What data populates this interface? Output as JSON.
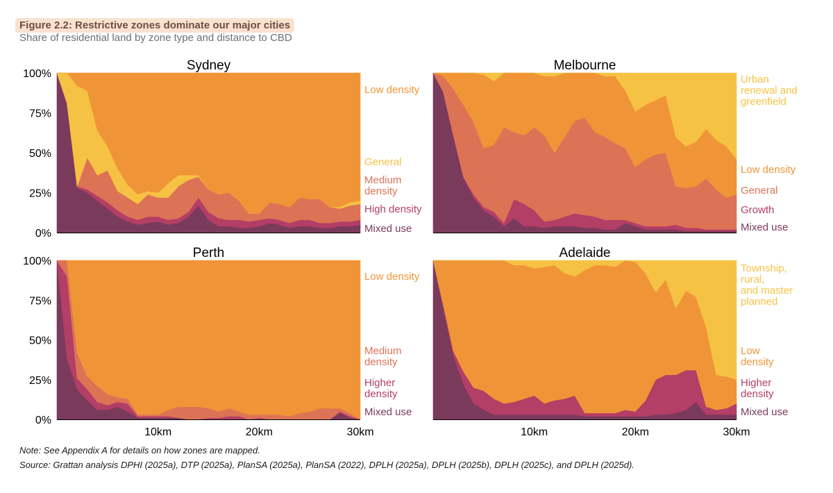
{
  "figure": {
    "title": "Figure 2.2: Restrictive zones dominate our major cities",
    "subtitle": "Share of residential land by zone type and distance to CBD",
    "note": "Note: See Appendix A for details on how zones are mapped.",
    "source": "Source: Grattan analysis DPHI (2025a), DTP (2025a), PlanSA (2025a), PlanSA (2022), DPLH (2025a), DPLH (2025b), DPLH (2025c), and DPLH (2025d)."
  },
  "chart_data": [
    {
      "type": "area",
      "stacked": true,
      "title": "Sydney",
      "x_unit": "km",
      "x": [
        0,
        1,
        2,
        3,
        4,
        5,
        6,
        7,
        8,
        9,
        10,
        11,
        12,
        13,
        14,
        15,
        16,
        17,
        18,
        19,
        20,
        21,
        22,
        23,
        24,
        25,
        26,
        27,
        28,
        29,
        30
      ],
      "xlim": [
        0,
        30
      ],
      "ylim": [
        0,
        100
      ],
      "y_ticks": [
        "0%",
        "25%",
        "50%",
        "75%",
        "100%"
      ],
      "x_ticks": [
        {
          "value": 10,
          "label": "10km"
        },
        {
          "value": 20,
          "label": "20km"
        },
        {
          "value": 30,
          "label": "30km"
        }
      ],
      "series": [
        {
          "name": "Mixed use",
          "color": "#7a3a5c",
          "values": [
            100,
            80,
            28,
            25,
            20,
            15,
            10,
            7,
            5,
            6,
            7,
            5,
            6,
            10,
            17,
            8,
            4,
            4,
            3,
            3,
            4,
            6,
            5,
            3,
            4,
            4,
            3,
            3,
            4,
            4,
            5
          ]
        },
        {
          "name": "High density",
          "color": "#b33e66",
          "values": [
            0,
            1,
            1,
            2,
            3,
            4,
            4,
            3,
            3,
            4,
            3,
            3,
            3,
            3,
            5,
            5,
            5,
            4,
            5,
            4,
            4,
            3,
            3,
            3,
            4,
            4,
            3,
            3,
            3,
            3,
            3
          ]
        },
        {
          "name": "Medium density",
          "color": "#dd7355",
          "values": [
            0,
            0,
            0,
            20,
            13,
            20,
            12,
            12,
            10,
            14,
            12,
            14,
            20,
            20,
            13,
            14,
            15,
            17,
            12,
            5,
            4,
            10,
            10,
            10,
            14,
            13,
            15,
            10,
            8,
            10,
            10
          ]
        },
        {
          "name": "General",
          "color": "#f6c244",
          "values": [
            0,
            19,
            63,
            42,
            28,
            15,
            14,
            8,
            6,
            2,
            3,
            9,
            7,
            3,
            1,
            0,
            0,
            0,
            0,
            0,
            0,
            0,
            0,
            0,
            0,
            0,
            0,
            0,
            1,
            2,
            2
          ]
        },
        {
          "name": "Low density",
          "color": "#f09537",
          "values": [
            0,
            0,
            8,
            11,
            36,
            46,
            60,
            70,
            76,
            74,
            75,
            69,
            64,
            64,
            64,
            73,
            76,
            75,
            80,
            88,
            88,
            81,
            82,
            84,
            78,
            79,
            79,
            84,
            84,
            81,
            80
          ]
        }
      ]
    },
    {
      "type": "area",
      "stacked": true,
      "title": "Melbourne",
      "x_unit": "km",
      "x": [
        0,
        1,
        2,
        3,
        4,
        5,
        6,
        7,
        8,
        9,
        10,
        11,
        12,
        13,
        14,
        15,
        16,
        17,
        18,
        19,
        20,
        21,
        22,
        23,
        24,
        25,
        26,
        27,
        28,
        29,
        30
      ],
      "xlim": [
        0,
        30
      ],
      "ylim": [
        0,
        100
      ],
      "y_ticks": [
        "0%",
        "25%",
        "50%",
        "75%",
        "100%"
      ],
      "x_ticks": [
        {
          "value": 10,
          "label": "10km"
        },
        {
          "value": 20,
          "label": "20km"
        },
        {
          "value": 30,
          "label": "30km"
        }
      ],
      "series": [
        {
          "name": "Mixed use",
          "color": "#7a3a5c",
          "values": [
            100,
            88,
            60,
            34,
            22,
            14,
            10,
            4,
            9,
            4,
            4,
            3,
            4,
            4,
            4,
            3,
            3,
            2,
            2,
            6,
            4,
            2,
            2,
            2,
            2,
            1,
            1,
            1,
            1,
            1,
            1
          ]
        },
        {
          "name": "Growth",
          "color": "#b33e66",
          "values": [
            0,
            0,
            1,
            1,
            2,
            2,
            3,
            2,
            12,
            14,
            10,
            4,
            4,
            6,
            8,
            8,
            7,
            6,
            6,
            2,
            2,
            2,
            2,
            2,
            3,
            2,
            2,
            1,
            1,
            1,
            1
          ]
        },
        {
          "name": "General",
          "color": "#dd7355",
          "values": [
            0,
            10,
            29,
            45,
            45,
            37,
            42,
            60,
            42,
            43,
            52,
            54,
            42,
            50,
            58,
            61,
            53,
            52,
            48,
            45,
            35,
            42,
            45,
            46,
            24,
            25,
            26,
            32,
            25,
            20,
            22
          ]
        },
        {
          "name": "Low density",
          "color": "#f09537",
          "values": [
            0,
            2,
            10,
            20,
            31,
            46,
            40,
            34,
            37,
            39,
            34,
            37,
            48,
            40,
            30,
            28,
            37,
            38,
            42,
            36,
            35,
            34,
            34,
            36,
            31,
            26,
            28,
            31,
            31,
            32,
            22
          ]
        },
        {
          "name": "Urban renewal and greenfield",
          "color": "#f6c244",
          "values": [
            0,
            0,
            0,
            0,
            0,
            1,
            5,
            0,
            0,
            0,
            0,
            2,
            2,
            0,
            0,
            0,
            0,
            2,
            2,
            11,
            24,
            20,
            17,
            14,
            40,
            46,
            43,
            35,
            42,
            46,
            54
          ]
        }
      ]
    },
    {
      "type": "area",
      "stacked": true,
      "title": "Perth",
      "x_unit": "km",
      "x": [
        0,
        1,
        2,
        3,
        4,
        5,
        6,
        7,
        8,
        9,
        10,
        11,
        12,
        13,
        14,
        15,
        16,
        17,
        18,
        19,
        20,
        21,
        22,
        23,
        24,
        25,
        26,
        27,
        28,
        29,
        30
      ],
      "xlim": [
        0,
        30
      ],
      "ylim": [
        0,
        100
      ],
      "y_ticks": [
        "0%",
        "25%",
        "50%",
        "75%",
        "100%"
      ],
      "x_ticks": [
        {
          "value": 10,
          "label": "10km"
        },
        {
          "value": 20,
          "label": "20km"
        },
        {
          "value": 30,
          "label": "30km"
        }
      ],
      "series": [
        {
          "name": "Mixed use",
          "color": "#7a3a5c",
          "values": [
            100,
            38,
            19,
            12,
            6,
            6,
            8,
            5,
            1,
            1,
            1,
            1,
            1,
            0,
            0,
            0,
            0,
            0,
            0,
            0,
            0,
            0,
            0,
            0,
            0,
            0,
            0,
            0,
            4,
            1,
            0
          ]
        },
        {
          "name": "Higher density",
          "color": "#b33e66",
          "values": [
            0,
            52,
            7,
            7,
            5,
            3,
            3,
            5,
            1,
            1,
            1,
            1,
            0,
            0,
            0,
            1,
            1,
            2,
            2,
            0,
            1,
            0,
            0,
            0,
            0,
            0,
            0,
            0,
            1,
            1,
            0
          ]
        },
        {
          "name": "Medium density",
          "color": "#dd7355",
          "values": [
            0,
            10,
            16,
            8,
            10,
            7,
            3,
            3,
            1,
            1,
            1,
            4,
            7,
            8,
            8,
            6,
            4,
            5,
            3,
            3,
            2,
            3,
            3,
            2,
            4,
            5,
            7,
            7,
            2,
            2,
            0
          ]
        },
        {
          "name": "Low density",
          "color": "#f09537",
          "values": [
            0,
            0,
            58,
            73,
            79,
            84,
            86,
            87,
            97,
            97,
            97,
            94,
            92,
            92,
            92,
            93,
            95,
            93,
            95,
            97,
            97,
            97,
            97,
            98,
            96,
            95,
            93,
            93,
            93,
            96,
            100
          ]
        }
      ]
    },
    {
      "type": "area",
      "stacked": true,
      "title": "Adelaide",
      "x_unit": "km",
      "x": [
        0,
        1,
        2,
        3,
        4,
        5,
        6,
        7,
        8,
        9,
        10,
        11,
        12,
        13,
        14,
        15,
        16,
        17,
        18,
        19,
        20,
        21,
        22,
        23,
        24,
        25,
        26,
        27,
        28,
        29,
        30
      ],
      "xlim": [
        0,
        30
      ],
      "ylim": [
        0,
        100
      ],
      "y_ticks": [
        "0%",
        "25%",
        "50%",
        "75%",
        "100%"
      ],
      "x_ticks": [
        {
          "value": 10,
          "label": "10km"
        },
        {
          "value": 20,
          "label": "20km"
        },
        {
          "value": 30,
          "label": "30km"
        }
      ],
      "series": [
        {
          "name": "Mixed use",
          "color": "#7a3a5c",
          "values": [
            100,
            70,
            40,
            22,
            10,
            6,
            3,
            3,
            3,
            3,
            3,
            3,
            3,
            3,
            3,
            2,
            2,
            2,
            2,
            2,
            2,
            2,
            3,
            3,
            4,
            6,
            11,
            3,
            3,
            3,
            3
          ]
        },
        {
          "name": "Higher density",
          "color": "#b33e66",
          "values": [
            0,
            2,
            3,
            8,
            10,
            12,
            10,
            7,
            8,
            10,
            12,
            7,
            9,
            10,
            12,
            2,
            2,
            2,
            2,
            4,
            3,
            10,
            22,
            25,
            24,
            25,
            20,
            5,
            3,
            4,
            7
          ]
        },
        {
          "name": "Low density",
          "color": "#f09537",
          "values": [
            0,
            28,
            57,
            70,
            80,
            82,
            87,
            90,
            86,
            84,
            80,
            86,
            85,
            79,
            75,
            90,
            93,
            93,
            92,
            94,
            94,
            80,
            55,
            60,
            42,
            50,
            46,
            50,
            22,
            20,
            15
          ]
        },
        {
          "name": "Township, rural, and master planned",
          "color": "#f6c244",
          "values": [
            0,
            0,
            0,
            0,
            0,
            0,
            0,
            0,
            3,
            3,
            5,
            4,
            3,
            8,
            10,
            6,
            3,
            3,
            4,
            0,
            1,
            8,
            20,
            12,
            30,
            19,
            23,
            42,
            72,
            73,
            75
          ]
        }
      ]
    }
  ],
  "panel_labels": [
    [
      {
        "text": "Low density",
        "color": "#f09537"
      },
      {
        "text": "General",
        "color": "#f6c244"
      },
      {
        "text": "Medium density",
        "color": "#dd7355"
      },
      {
        "text": "High density",
        "color": "#b33e66"
      },
      {
        "text": "Mixed use",
        "color": "#7a3a5c"
      }
    ],
    [
      {
        "text": "Urban renewal and greenfield",
        "color": "#f6c244"
      },
      {
        "text": "Low density",
        "color": "#f09537"
      },
      {
        "text": "General",
        "color": "#dd7355"
      },
      {
        "text": "Growth",
        "color": "#b33e66"
      },
      {
        "text": "Mixed use",
        "color": "#7a3a5c"
      }
    ],
    [
      {
        "text": "Low density",
        "color": "#f09537"
      },
      {
        "text": "Medium density",
        "color": "#dd7355"
      },
      {
        "text": "Higher density",
        "color": "#b33e66"
      },
      {
        "text": "Mixed use",
        "color": "#7a3a5c"
      }
    ],
    [
      {
        "text": "Township, rural, and master planned",
        "color": "#f6c244"
      },
      {
        "text": "Low density",
        "color": "#f09537"
      },
      {
        "text": "Higher density",
        "color": "#b33e66"
      },
      {
        "text": "Mixed use",
        "color": "#7a3a5c"
      }
    ]
  ]
}
